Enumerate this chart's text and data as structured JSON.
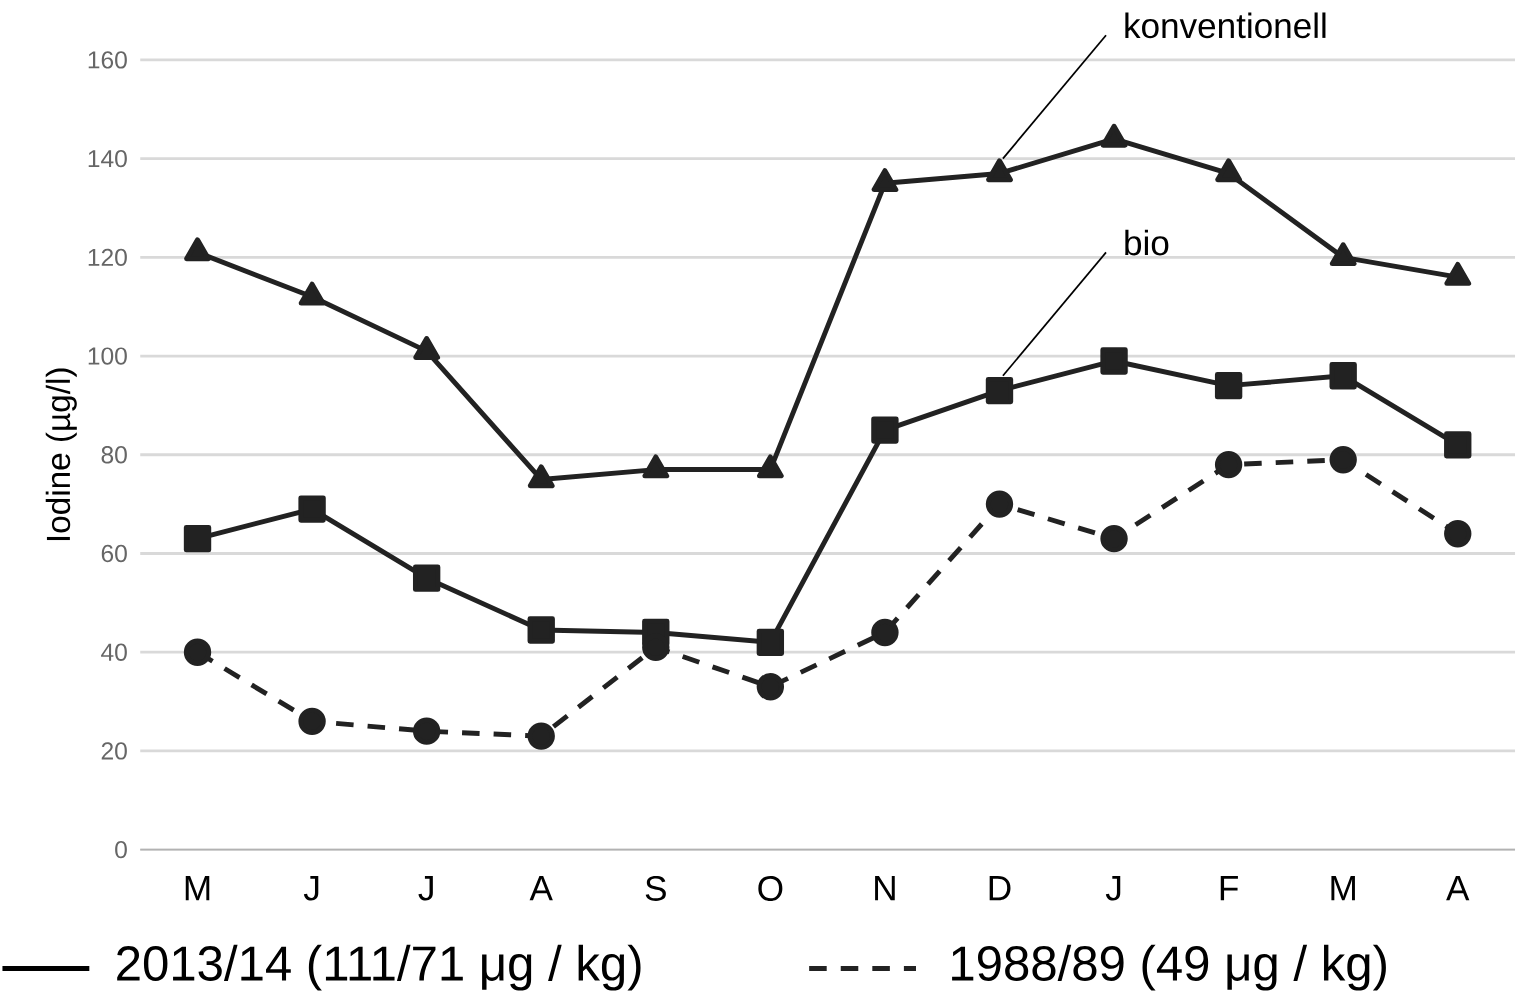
{
  "chart_data": {
    "type": "line",
    "ylabel": "Iodine (µg/l)",
    "categories": [
      "M",
      "J",
      "J",
      "A",
      "S",
      "O",
      "N",
      "D",
      "J",
      "F",
      "M",
      "A"
    ],
    "series": [
      {
        "name": "konventionell",
        "color": "#222222",
        "marker": "triangle",
        "line_style": "solid",
        "values": [
          121,
          112,
          101,
          75,
          77,
          77,
          135,
          137,
          144,
          137,
          120,
          116
        ]
      },
      {
        "name": "bio",
        "color": "#222222",
        "marker": "square",
        "line_style": "solid",
        "values": [
          63,
          69,
          55,
          44.5,
          44,
          42,
          85,
          93,
          99,
          94,
          96,
          82
        ]
      },
      {
        "name": "1988/89 (49 μg / kg)",
        "color": "#222222",
        "marker": "circle",
        "line_style": "dashed",
        "values": [
          40,
          26,
          24,
          23,
          41,
          33,
          44,
          70,
          63,
          78,
          79,
          64
        ]
      }
    ],
    "annotations": [
      "2013/14 (111/71 μg / kg)"
    ],
    "ylim": [
      0,
      160
    ],
    "yticks": [
      0,
      20,
      40,
      60,
      80,
      100,
      120,
      140,
      160
    ],
    "grid": "y",
    "legend": "bottom"
  }
}
